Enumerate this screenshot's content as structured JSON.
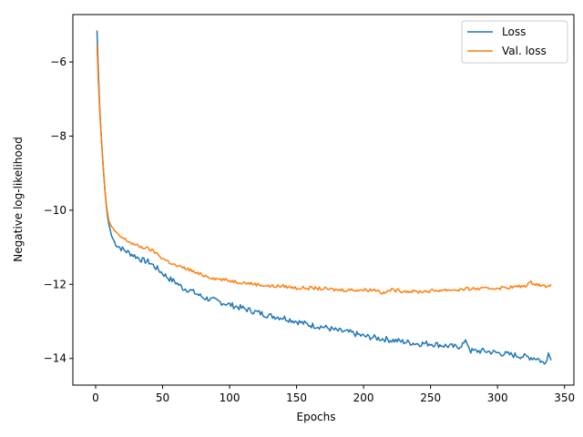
{
  "chart_data": {
    "type": "line",
    "title": "",
    "xlabel": "Epochs",
    "ylabel": "Negative log-likelihood",
    "xlim": [
      -17,
      357
    ],
    "ylim": [
      -14.72,
      -4.72
    ],
    "xticks": [
      0,
      50,
      100,
      150,
      200,
      250,
      300,
      350
    ],
    "yticks": [
      -14,
      -12,
      -10,
      -8,
      -6
    ],
    "grid": false,
    "legend_position": "top-right",
    "series": [
      {
        "name": "Loss",
        "color": "#1f77b4",
        "x": [
          1,
          2,
          3,
          4,
          5,
          6,
          7,
          8,
          9,
          10,
          12,
          14,
          16,
          20,
          25,
          30,
          35,
          40,
          45,
          50,
          55,
          60,
          65,
          70,
          75,
          80,
          90,
          100,
          110,
          120,
          130,
          140,
          150,
          160,
          170,
          180,
          190,
          200,
          210,
          220,
          230,
          240,
          250,
          260,
          270,
          277,
          280,
          290,
          300,
          310,
          320,
          330,
          335,
          338,
          340
        ],
        "y": [
          -5.15,
          -6.2,
          -7.2,
          -7.9,
          -8.5,
          -9.0,
          -9.5,
          -9.9,
          -10.2,
          -10.4,
          -10.7,
          -10.85,
          -10.95,
          -11.05,
          -11.15,
          -11.25,
          -11.35,
          -11.4,
          -11.55,
          -11.7,
          -11.85,
          -11.95,
          -12.1,
          -12.15,
          -12.25,
          -12.35,
          -12.45,
          -12.55,
          -12.65,
          -12.75,
          -12.85,
          -12.9,
          -13.0,
          -13.1,
          -13.15,
          -13.25,
          -13.3,
          -13.4,
          -13.45,
          -13.5,
          -13.55,
          -13.6,
          -13.6,
          -13.65,
          -13.7,
          -13.55,
          -13.8,
          -13.8,
          -13.85,
          -13.9,
          -13.95,
          -14.0,
          -14.15,
          -13.85,
          -14.05
        ]
      },
      {
        "name": "Val. loss",
        "color": "#ff7f0e",
        "x": [
          1,
          2,
          3,
          4,
          5,
          6,
          7,
          8,
          9,
          10,
          12,
          14,
          16,
          20,
          25,
          30,
          35,
          40,
          45,
          50,
          55,
          60,
          65,
          70,
          75,
          80,
          90,
          100,
          110,
          120,
          130,
          140,
          150,
          160,
          170,
          180,
          190,
          200,
          210,
          215,
          220,
          230,
          240,
          250,
          260,
          270,
          280,
          290,
          300,
          310,
          320,
          325,
          330,
          335,
          340
        ],
        "y": [
          -5.55,
          -6.5,
          -7.3,
          -7.9,
          -8.5,
          -9.0,
          -9.5,
          -9.85,
          -10.1,
          -10.3,
          -10.45,
          -10.55,
          -10.65,
          -10.75,
          -10.85,
          -10.95,
          -11.0,
          -11.05,
          -11.15,
          -11.3,
          -11.4,
          -11.5,
          -11.55,
          -11.6,
          -11.7,
          -11.75,
          -11.85,
          -11.9,
          -11.95,
          -12.0,
          -12.05,
          -12.05,
          -12.1,
          -12.1,
          -12.12,
          -12.15,
          -12.15,
          -12.15,
          -12.15,
          -12.25,
          -12.15,
          -12.18,
          -12.2,
          -12.18,
          -12.15,
          -12.15,
          -12.12,
          -12.12,
          -12.1,
          -12.08,
          -12.05,
          -11.95,
          -12.0,
          -12.05,
          -12.0
        ]
      }
    ]
  }
}
